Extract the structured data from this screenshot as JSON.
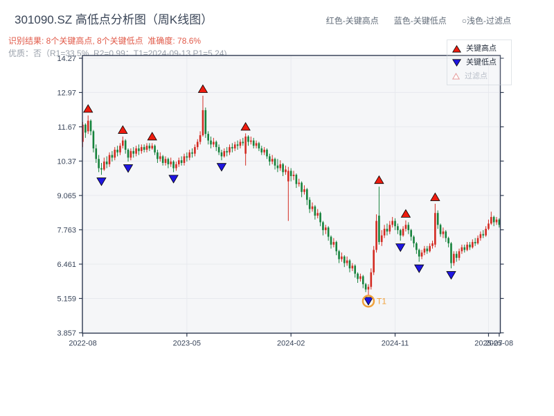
{
  "header": {
    "title": "301090.SZ 高低点分析图（周K线图）",
    "result_line": "识别结果: 8个关键高点, 8个关键低点  准确度: 78.6%",
    "quality_line": "优质：否（R1=33.5%, R2=0.99；T1=2024-09-13 P1=5.24)",
    "legend_items": [
      {
        "label": "红色-关键高点"
      },
      {
        "label": "蓝色-关键低点"
      },
      {
        "label": "○浅色-过滤点"
      }
    ]
  },
  "chart_legend": [
    {
      "marker": "up-triangle",
      "label": "关键高点",
      "muted": false
    },
    {
      "marker": "down-triangle",
      "label": "关键低点",
      "muted": false
    },
    {
      "marker": "up-triangle-outline",
      "label": "过滤点",
      "muted": true
    }
  ],
  "chart_data": {
    "type": "candlestick",
    "period": "weekly",
    "symbol": "301090.SZ",
    "candle_format": [
      "open",
      "high",
      "low",
      "close"
    ],
    "y_ticks": [
      {
        "value": 14.27,
        "label": "14.27"
      },
      {
        "value": 12.97,
        "label": "12.97"
      },
      {
        "value": 11.67,
        "label": "11.67"
      },
      {
        "value": 10.37,
        "label": "10.37"
      },
      {
        "value": 9.065,
        "label": "9.065"
      },
      {
        "value": 7.763,
        "label": "7.763"
      },
      {
        "value": 6.461,
        "label": "6.461"
      },
      {
        "value": 5.159,
        "label": "5.159"
      },
      {
        "value": 3.857,
        "label": "3.857"
      }
    ],
    "x_ticks": [
      {
        "week": 0,
        "label": "2022-08"
      },
      {
        "week": 39,
        "label": "2023-05"
      },
      {
        "week": 78,
        "label": "2024-02"
      },
      {
        "week": 117,
        "label": "2024-11"
      },
      {
        "week": 152,
        "label": "2025-07"
      },
      {
        "week": 156,
        "label": "2025-08"
      }
    ],
    "ylim": [
      3.8,
      14.38
    ],
    "weeks": 157,
    "candles": [
      [
        11.1,
        11.85,
        10.9,
        11.75
      ],
      [
        11.75,
        11.8,
        11.25,
        11.45
      ],
      [
        11.5,
        12.1,
        11.4,
        11.9
      ],
      [
        11.9,
        11.95,
        11.35,
        11.5
      ],
      [
        11.5,
        11.55,
        10.7,
        10.85
      ],
      [
        10.85,
        11.0,
        10.3,
        10.45
      ],
      [
        10.45,
        10.6,
        9.95,
        10.1
      ],
      [
        10.1,
        10.3,
        9.85,
        10.05
      ],
      [
        10.05,
        10.5,
        10.0,
        10.35
      ],
      [
        10.35,
        10.55,
        10.1,
        10.25
      ],
      [
        10.25,
        10.7,
        10.15,
        10.6
      ],
      [
        10.6,
        10.75,
        10.35,
        10.5
      ],
      [
        10.5,
        10.9,
        10.4,
        10.8
      ],
      [
        10.8,
        10.95,
        10.55,
        10.7
      ],
      [
        10.7,
        11.05,
        10.6,
        10.95
      ],
      [
        10.95,
        11.3,
        10.85,
        11.15
      ],
      [
        11.15,
        11.2,
        10.65,
        10.8
      ],
      [
        10.8,
        10.85,
        10.35,
        10.5
      ],
      [
        10.5,
        10.85,
        10.4,
        10.75
      ],
      [
        10.75,
        10.9,
        10.5,
        10.65
      ],
      [
        10.65,
        10.95,
        10.55,
        10.85
      ],
      [
        10.85,
        11.0,
        10.6,
        10.75
      ],
      [
        10.75,
        11.0,
        10.65,
        10.9
      ],
      [
        10.9,
        11.0,
        10.7,
        10.8
      ],
      [
        10.8,
        11.05,
        10.7,
        10.95
      ],
      [
        10.95,
        11.05,
        10.75,
        10.85
      ],
      [
        10.85,
        11.05,
        10.8,
        10.95
      ],
      [
        10.95,
        11.0,
        10.6,
        10.7
      ],
      [
        10.7,
        10.8,
        10.3,
        10.45
      ],
      [
        10.45,
        10.7,
        10.35,
        10.55
      ],
      [
        10.55,
        10.6,
        10.2,
        10.3
      ],
      [
        10.3,
        10.55,
        10.2,
        10.45
      ],
      [
        10.45,
        10.5,
        10.1,
        10.25
      ],
      [
        10.25,
        10.5,
        10.15,
        10.35
      ],
      [
        10.35,
        10.4,
        9.95,
        10.1
      ],
      [
        10.1,
        10.35,
        10.0,
        10.25
      ],
      [
        10.25,
        10.5,
        10.15,
        10.4
      ],
      [
        10.4,
        10.55,
        10.2,
        10.3
      ],
      [
        10.3,
        10.65,
        10.2,
        10.55
      ],
      [
        10.55,
        10.7,
        10.35,
        10.5
      ],
      [
        10.5,
        10.8,
        10.4,
        10.7
      ],
      [
        10.7,
        10.85,
        10.5,
        10.65
      ],
      [
        10.65,
        11.0,
        10.55,
        10.9
      ],
      [
        10.9,
        11.2,
        10.8,
        11.1
      ],
      [
        11.1,
        11.5,
        11.0,
        11.35
      ],
      [
        11.35,
        12.85,
        11.3,
        12.3
      ],
      [
        12.3,
        12.4,
        11.25,
        11.4
      ],
      [
        11.4,
        11.5,
        11.0,
        11.15
      ],
      [
        11.15,
        11.3,
        10.85,
        11.0
      ],
      [
        11.0,
        11.25,
        10.9,
        11.1
      ],
      [
        11.1,
        11.15,
        10.75,
        10.9
      ],
      [
        10.9,
        11.0,
        10.6,
        10.7
      ],
      [
        10.7,
        10.8,
        10.4,
        10.55
      ],
      [
        10.55,
        10.85,
        10.5,
        10.75
      ],
      [
        10.75,
        10.9,
        10.55,
        10.7
      ],
      [
        10.7,
        11.0,
        10.6,
        10.9
      ],
      [
        10.9,
        11.05,
        10.7,
        10.85
      ],
      [
        10.85,
        11.1,
        10.75,
        11.0
      ],
      [
        11.0,
        11.15,
        10.8,
        10.95
      ],
      [
        10.95,
        11.2,
        10.85,
        11.1
      ],
      [
        11.1,
        11.25,
        10.95,
        11.05
      ],
      [
        10.65,
        11.42,
        10.2,
        11.3
      ],
      [
        11.3,
        11.35,
        10.95,
        11.1
      ],
      [
        11.1,
        11.3,
        11.0,
        11.15
      ],
      [
        11.15,
        11.25,
        10.85,
        10.95
      ],
      [
        10.95,
        11.15,
        10.85,
        11.05
      ],
      [
        11.05,
        11.1,
        10.75,
        10.85
      ],
      [
        10.85,
        10.95,
        10.6,
        10.7
      ],
      [
        10.7,
        10.9,
        10.6,
        10.8
      ],
      [
        10.8,
        10.85,
        10.45,
        10.55
      ],
      [
        10.55,
        10.65,
        10.2,
        10.35
      ],
      [
        10.35,
        10.6,
        10.25,
        10.45
      ],
      [
        10.45,
        10.5,
        10.05,
        10.2
      ],
      [
        10.2,
        10.45,
        9.95,
        10.1
      ],
      [
        10.1,
        10.4,
        10.0,
        10.25
      ],
      [
        10.25,
        10.3,
        9.8,
        9.95
      ],
      [
        9.95,
        10.2,
        9.85,
        10.05
      ],
      [
        9.6,
        10.15,
        8.1,
        10.0
      ],
      [
        10.0,
        10.1,
        9.6,
        9.8
      ],
      [
        9.8,
        10.0,
        9.65,
        9.85
      ],
      [
        9.85,
        9.9,
        9.35,
        9.5
      ],
      [
        9.5,
        9.7,
        9.4,
        9.55
      ],
      [
        9.55,
        9.6,
        9.0,
        9.2
      ],
      [
        9.2,
        9.45,
        9.1,
        9.3
      ],
      [
        9.3,
        9.35,
        8.7,
        8.9
      ],
      [
        8.9,
        9.0,
        8.4,
        8.55
      ],
      [
        8.55,
        8.8,
        8.45,
        8.65
      ],
      [
        8.65,
        8.7,
        8.15,
        8.3
      ],
      [
        8.3,
        8.55,
        8.2,
        8.4
      ],
      [
        8.4,
        8.45,
        7.9,
        8.05
      ],
      [
        8.05,
        8.1,
        7.55,
        7.75
      ],
      [
        7.75,
        7.95,
        7.6,
        7.85
      ],
      [
        7.85,
        7.9,
        7.35,
        7.5
      ],
      [
        7.5,
        7.55,
        7.05,
        7.2
      ],
      [
        7.2,
        7.45,
        7.1,
        7.3
      ],
      [
        7.3,
        7.35,
        6.8,
        6.95
      ],
      [
        6.95,
        7.0,
        6.5,
        6.65
      ],
      [
        6.65,
        6.9,
        6.55,
        6.75
      ],
      [
        6.75,
        6.8,
        6.35,
        6.5
      ],
      [
        6.5,
        6.75,
        6.4,
        6.6
      ],
      [
        6.6,
        6.65,
        6.15,
        6.3
      ],
      [
        6.3,
        6.5,
        6.2,
        6.4
      ],
      [
        6.4,
        6.45,
        5.95,
        6.1
      ],
      [
        6.1,
        6.15,
        5.75,
        5.9
      ],
      [
        5.9,
        6.1,
        5.8,
        6.0
      ],
      [
        6.0,
        6.05,
        5.55,
        5.7
      ],
      [
        5.7,
        5.75,
        5.4,
        5.5
      ],
      [
        5.5,
        5.7,
        5.24,
        5.6
      ],
      [
        5.6,
        6.3,
        5.5,
        6.15
      ],
      [
        6.15,
        7.15,
        6.05,
        7.0
      ],
      [
        7.0,
        8.35,
        6.9,
        8.1
      ],
      [
        8.3,
        9.4,
        7.2,
        7.3
      ],
      [
        7.3,
        7.75,
        7.15,
        7.55
      ],
      [
        7.55,
        7.95,
        7.45,
        7.8
      ],
      [
        7.8,
        8.0,
        7.55,
        7.7
      ],
      [
        7.7,
        8.1,
        7.6,
        7.95
      ],
      [
        7.95,
        8.25,
        7.85,
        8.1
      ],
      [
        8.1,
        8.2,
        7.75,
        7.9
      ],
      [
        7.9,
        8.0,
        7.6,
        7.75
      ],
      [
        7.75,
        7.8,
        7.35,
        7.55
      ],
      [
        7.55,
        7.9,
        7.5,
        7.8
      ],
      [
        7.8,
        8.12,
        7.7,
        7.95
      ],
      [
        7.95,
        8.05,
        7.6,
        7.75
      ],
      [
        7.75,
        7.8,
        7.35,
        7.5
      ],
      [
        7.5,
        7.55,
        7.1,
        7.25
      ],
      [
        7.25,
        7.3,
        6.85,
        7.0
      ],
      [
        7.0,
        7.05,
        6.55,
        6.75
      ],
      [
        6.75,
        7.0,
        6.65,
        6.9
      ],
      [
        6.9,
        7.15,
        6.8,
        7.05
      ],
      [
        7.05,
        7.15,
        6.85,
        6.95
      ],
      [
        6.95,
        7.25,
        6.9,
        7.15
      ],
      [
        7.15,
        7.35,
        7.05,
        7.25
      ],
      [
        7.2,
        8.75,
        7.1,
        8.4
      ],
      [
        8.4,
        8.5,
        7.8,
        7.95
      ],
      [
        7.95,
        8.0,
        7.5,
        7.6
      ],
      [
        7.6,
        7.85,
        7.45,
        7.7
      ],
      [
        7.7,
        7.75,
        7.3,
        7.45
      ],
      [
        7.45,
        7.5,
        7.1,
        7.25
      ],
      [
        7.25,
        7.3,
        6.3,
        6.5
      ],
      [
        6.5,
        6.95,
        6.4,
        6.85
      ],
      [
        6.85,
        6.95,
        6.55,
        6.7
      ],
      [
        6.7,
        7.05,
        6.6,
        6.95
      ],
      [
        6.95,
        7.2,
        6.85,
        7.1
      ],
      [
        7.1,
        7.2,
        6.9,
        7.0
      ],
      [
        7.0,
        7.3,
        6.95,
        7.2
      ],
      [
        7.2,
        7.3,
        7.0,
        7.1
      ],
      [
        7.1,
        7.4,
        7.05,
        7.3
      ],
      [
        7.3,
        7.45,
        7.15,
        7.25
      ],
      [
        7.25,
        7.55,
        7.2,
        7.45
      ],
      [
        7.45,
        7.7,
        7.35,
        7.6
      ],
      [
        7.6,
        7.75,
        7.45,
        7.55
      ],
      [
        7.55,
        7.9,
        7.5,
        7.8
      ],
      [
        7.8,
        8.15,
        7.75,
        8.0
      ],
      [
        8.0,
        8.45,
        7.95,
        8.25
      ],
      [
        8.25,
        8.3,
        7.9,
        8.05
      ],
      [
        8.05,
        8.25,
        7.95,
        8.15
      ],
      [
        8.15,
        8.2,
        7.85,
        7.95
      ]
    ],
    "key_high_weeks": [
      2,
      15,
      26,
      45,
      61,
      111,
      121,
      132
    ],
    "key_low_weeks": [
      7,
      17,
      34,
      52,
      107,
      119,
      126,
      138
    ],
    "t1": {
      "week": 107,
      "label": "T1",
      "price": 5.24,
      "date": "2024-09-13"
    },
    "colors": {
      "up": "#d32a21",
      "down": "#15823b",
      "key_high": "#ee1c0f",
      "key_low": "#1f16e0",
      "filtered": "#e59a9a",
      "t1": "#f0a13a",
      "spine": "#2e3950",
      "grid": "#e7e9ee",
      "plot_bg": "#f5f6f8",
      "tick_text": "#39455a"
    }
  }
}
